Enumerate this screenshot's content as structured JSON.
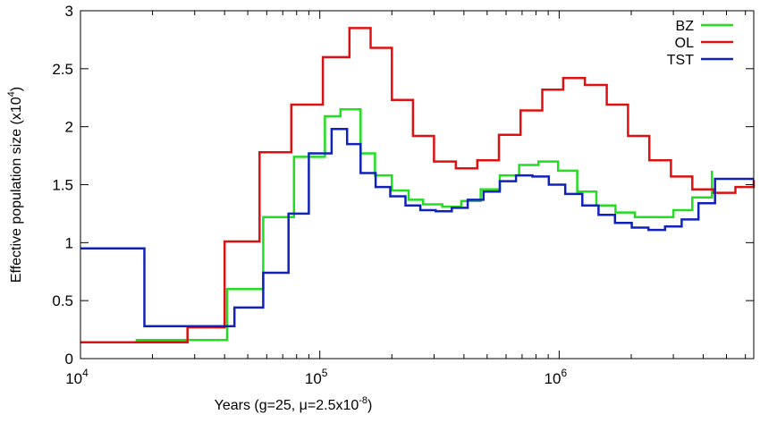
{
  "chart_data": {
    "type": "line",
    "title": "",
    "xlabel": "Years (g=25, μ=2.5x10",
    "xlabel_exponent": "-8",
    "xlabel_suffix": ")",
    "ylabel": "Effective population size (x10",
    "ylabel_exponent": "4",
    "ylabel_suffix": ")",
    "x_scale": "log",
    "xlim": [
      10000,
      6500000
    ],
    "ylim": [
      0,
      3
    ],
    "x_ticks": [
      {
        "value": 10000,
        "base": "10",
        "exp": "4"
      },
      {
        "value": 100000,
        "base": "10",
        "exp": "5"
      },
      {
        "value": 1000000,
        "base": "10",
        "exp": "6"
      }
    ],
    "y_ticks": [
      {
        "value": 0,
        "label": "0"
      },
      {
        "value": 0.5,
        "label": "0.5"
      },
      {
        "value": 1,
        "label": "1"
      },
      {
        "value": 1.5,
        "label": "1.5"
      },
      {
        "value": 2,
        "label": "2"
      },
      {
        "value": 2.5,
        "label": "2.5"
      },
      {
        "value": 3,
        "label": "3"
      }
    ],
    "legend_position": "top-right",
    "grid": false,
    "series": [
      {
        "name": "BZ",
        "color": "#22dd22",
        "step": true,
        "x": [
          17000,
          28000,
          41000,
          58000,
          78000,
          105000,
          122000,
          148000,
          170000,
          200000,
          235000,
          270000,
          325000,
          390000,
          470000,
          565000,
          680000,
          820000,
          990000,
          1190000,
          1430000,
          1720000,
          2070000,
          2500000,
          3000000,
          3600000,
          4350000
        ],
        "y": [
          0.16,
          0.16,
          0.6,
          1.22,
          1.74,
          2.09,
          2.15,
          1.77,
          1.58,
          1.45,
          1.37,
          1.33,
          1.31,
          1.36,
          1.46,
          1.58,
          1.67,
          1.7,
          1.62,
          1.44,
          1.32,
          1.26,
          1.22,
          1.22,
          1.28,
          1.39,
          1.62
        ]
      },
      {
        "name": "OL",
        "color": "#dd1111",
        "step": true,
        "x": [
          10000,
          22000,
          28000,
          40000,
          56000,
          76000,
          103000,
          133000,
          163000,
          200000,
          245000,
          300000,
          370000,
          455000,
          560000,
          690000,
          850000,
          1040000,
          1280000,
          1580000,
          1940000,
          2380000,
          2930000,
          3600000,
          4430000,
          5450000,
          6500000
        ],
        "y": [
          0.14,
          0.14,
          0.27,
          1.01,
          1.78,
          2.19,
          2.6,
          2.85,
          2.68,
          2.23,
          1.92,
          1.7,
          1.64,
          1.71,
          1.93,
          2.14,
          2.32,
          2.42,
          2.36,
          2.19,
          1.92,
          1.71,
          1.57,
          1.46,
          1.43,
          1.48,
          1.54
        ]
      },
      {
        "name": "TST",
        "color": "#1122bb",
        "step": true,
        "x": [
          10000,
          18500,
          30000,
          44000,
          58000,
          74000,
          90000,
          112000,
          130000,
          148000,
          171000,
          197000,
          228000,
          263000,
          305000,
          356000,
          415000,
          483000,
          565000,
          660000,
          773000,
          905000,
          1060000,
          1250000,
          1460000,
          1710000,
          2010000,
          2360000,
          2770000,
          3250000,
          3820000,
          4480000,
          5270000,
          6500000
        ],
        "y": [
          0.95,
          0.28,
          0.28,
          0.44,
          0.74,
          1.25,
          1.77,
          1.98,
          1.85,
          1.6,
          1.48,
          1.4,
          1.32,
          1.28,
          1.27,
          1.3,
          1.37,
          1.44,
          1.53,
          1.58,
          1.57,
          1.5,
          1.42,
          1.32,
          1.24,
          1.17,
          1.13,
          1.11,
          1.14,
          1.2,
          1.34,
          1.55,
          1.55,
          1.55
        ]
      }
    ]
  }
}
